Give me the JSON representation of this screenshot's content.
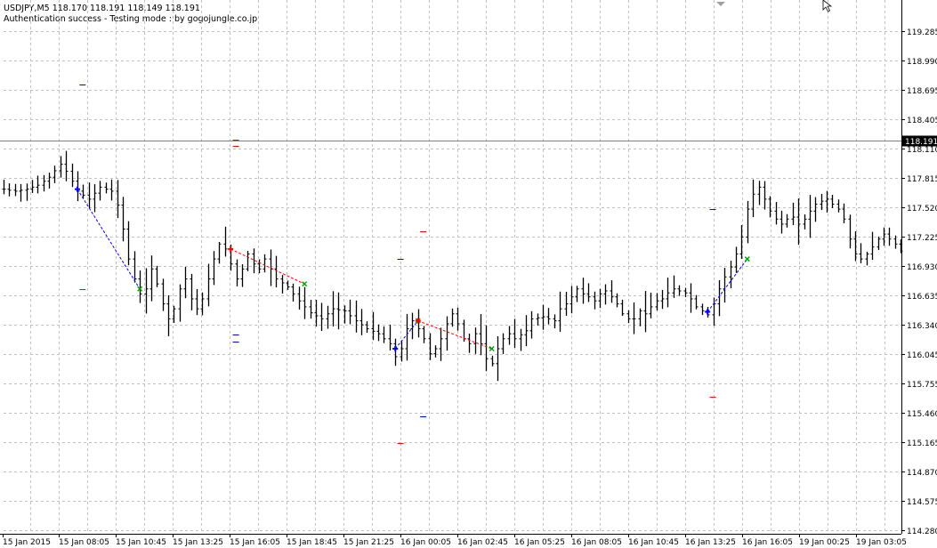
{
  "header": {
    "symbol_line": "USDJPY,M5  118.170 118.191 118.149 118.191",
    "status_line": "Authentication success - Testing mode : by gogojungle.co.jp"
  },
  "colors": {
    "background": "#ffffff",
    "grid": "#c0c0c0",
    "bars": "#000000",
    "buy_marker": "#0000ff",
    "sell_marker": "#ff0000",
    "buy_link": "#0000ff",
    "sell_link": "#ff0000",
    "close_marker": "#00a000",
    "price_label_bg": "#000000",
    "price_label_fg": "#ffffff"
  },
  "icons": {
    "cursor": "mouse-pointer-icon",
    "shift": "chart-shift-triangle-icon"
  },
  "chart_data": {
    "type": "bar",
    "symbol": "USDJPY",
    "timeframe": "M5",
    "ylim": [
      114.28,
      119.38
    ],
    "grid": true,
    "y_ticks": [
      "119.285",
      "118.990",
      "118.695",
      "118.405",
      "118.110",
      "117.815",
      "117.520",
      "117.225",
      "116.930",
      "116.635",
      "116.340",
      "116.045",
      "115.755",
      "115.460",
      "115.165",
      "114.870",
      "114.575",
      "114.280"
    ],
    "x_ticks": [
      "15 Jan 2015",
      "15 Jan 08:05",
      "15 Jan 10:45",
      "15 Jan 13:25",
      "15 Jan 16:05",
      "15 Jan 18:45",
      "15 Jan 21:25",
      "16 Jan 00:05",
      "16 Jan 02:45",
      "16 Jan 05:25",
      "16 Jan 08:05",
      "16 Jan 10:45",
      "16 Jan 13:25",
      "16 Jan 16:05",
      "19 Jan 00:25",
      "19 Jan 03:05"
    ],
    "current_price": "118.191",
    "path_points": [
      [
        0,
        117.7
      ],
      [
        2,
        117.68
      ],
      [
        4,
        117.7
      ],
      [
        6,
        117.74
      ],
      [
        8,
        117.82
      ],
      [
        10,
        117.95
      ],
      [
        11,
        117.88
      ],
      [
        13,
        117.68
      ],
      [
        15,
        117.6
      ],
      [
        17,
        117.72
      ],
      [
        19,
        117.68
      ],
      [
        20,
        117.54
      ],
      [
        21,
        117.3
      ],
      [
        22,
        117.0
      ],
      [
        23,
        116.8
      ],
      [
        24,
        116.65
      ],
      [
        25,
        116.7
      ],
      [
        26,
        116.9
      ],
      [
        27,
        116.75
      ],
      [
        28,
        116.55
      ],
      [
        29,
        116.4
      ],
      [
        30,
        116.5
      ],
      [
        31,
        116.7
      ],
      [
        32,
        116.8
      ],
      [
        33,
        116.6
      ],
      [
        34,
        116.5
      ],
      [
        35,
        116.6
      ],
      [
        36,
        116.8
      ],
      [
        37,
        117.0
      ],
      [
        38,
        117.15
      ],
      [
        39,
        117.1
      ],
      [
        40,
        116.95
      ],
      [
        41,
        116.8
      ],
      [
        42,
        116.9
      ],
      [
        43,
        117.05
      ],
      [
        44,
        116.95
      ],
      [
        45,
        116.9
      ],
      [
        46,
        117.0
      ],
      [
        47,
        116.9
      ],
      [
        48,
        116.8
      ],
      [
        50,
        116.72
      ],
      [
        52,
        116.58
      ],
      [
        54,
        116.46
      ],
      [
        56,
        116.4
      ],
      [
        58,
        116.5
      ],
      [
        60,
        116.48
      ],
      [
        62,
        116.38
      ],
      [
        64,
        116.3
      ],
      [
        66,
        116.25
      ],
      [
        68,
        116.15
      ],
      [
        69,
        116.02
      ],
      [
        70,
        116.1
      ],
      [
        71,
        116.3
      ],
      [
        72,
        116.38
      ],
      [
        73,
        116.3
      ],
      [
        74,
        116.2
      ],
      [
        75,
        116.05
      ],
      [
        76,
        116.1
      ],
      [
        77,
        116.2
      ],
      [
        78,
        116.35
      ],
      [
        79,
        116.45
      ],
      [
        80,
        116.35
      ],
      [
        81,
        116.2
      ],
      [
        82,
        116.15
      ],
      [
        83,
        116.25
      ],
      [
        84,
        116.15
      ],
      [
        85,
        116.0
      ],
      [
        86,
        115.95
      ],
      [
        87,
        116.1
      ],
      [
        88,
        116.2
      ],
      [
        89,
        116.25
      ],
      [
        90,
        116.2
      ],
      [
        92,
        116.28
      ],
      [
        93,
        116.4
      ],
      [
        95,
        116.42
      ],
      [
        97,
        116.38
      ],
      [
        98,
        116.5
      ],
      [
        99,
        116.55
      ],
      [
        100,
        116.62
      ],
      [
        101,
        116.7
      ],
      [
        102,
        116.65
      ],
      [
        103,
        116.62
      ],
      [
        104,
        116.58
      ],
      [
        105,
        116.65
      ],
      [
        106,
        116.68
      ],
      [
        107,
        116.62
      ],
      [
        108,
        116.55
      ],
      [
        109,
        116.45
      ],
      [
        110,
        116.4
      ],
      [
        111,
        116.4
      ],
      [
        112,
        116.48
      ],
      [
        113,
        116.45
      ],
      [
        114,
        116.52
      ],
      [
        115,
        116.58
      ],
      [
        116,
        116.6
      ],
      [
        117,
        116.66
      ],
      [
        118,
        116.7
      ],
      [
        119,
        116.68
      ],
      [
        120,
        116.66
      ],
      [
        121,
        116.6
      ],
      [
        122,
        116.52
      ],
      [
        123,
        116.48
      ],
      [
        124,
        116.44
      ],
      [
        125,
        116.55
      ],
      [
        126,
        116.7
      ],
      [
        127,
        116.82
      ],
      [
        128,
        116.92
      ],
      [
        129,
        117.05
      ],
      [
        130,
        117.22
      ],
      [
        131,
        117.5
      ],
      [
        132,
        117.65
      ],
      [
        133,
        117.72
      ],
      [
        134,
        117.6
      ],
      [
        135,
        117.48
      ],
      [
        136,
        117.4
      ],
      [
        137,
        117.35
      ],
      [
        138,
        117.4
      ],
      [
        139,
        117.42
      ],
      [
        140,
        117.35
      ],
      [
        141,
        117.4
      ],
      [
        142,
        117.48
      ],
      [
        143,
        117.55
      ],
      [
        144,
        117.58
      ],
      [
        145,
        117.6
      ],
      [
        146,
        117.55
      ],
      [
        147,
        117.5
      ],
      [
        148,
        117.4
      ],
      [
        149,
        117.2
      ],
      [
        150,
        117.05
      ],
      [
        151,
        117.0
      ],
      [
        152,
        117.05
      ],
      [
        153,
        117.12
      ],
      [
        154,
        117.2
      ],
      [
        155,
        117.25
      ],
      [
        156,
        117.2
      ],
      [
        157,
        117.15
      ],
      [
        158,
        117.08
      ]
    ],
    "trades": [
      {
        "type": "buy",
        "open_bar": 13,
        "open_price": 117.7,
        "close_bar": 24,
        "close_price": 116.7
      },
      {
        "type": "sell",
        "open_bar": 40,
        "open_price": 117.1,
        "close_bar": 53,
        "close_price": 116.75
      },
      {
        "type": "buy",
        "open_bar": 69,
        "open_price": 116.1,
        "close_bar": 73,
        "close_price": 116.38
      },
      {
        "type": "sell",
        "open_bar": 73,
        "open_price": 116.38,
        "close_bar": 86,
        "close_price": 116.1
      },
      {
        "type": "buy",
        "open_bar": 124,
        "open_price": 116.47,
        "close_bar": 131,
        "close_price": 117.0
      }
    ],
    "levels": [
      {
        "type": "buy",
        "bar": 14,
        "price": 118.75
      },
      {
        "type": "sell",
        "bar": 14,
        "price": 116.7
      },
      {
        "type": "sell",
        "bar": 41,
        "price": 118.2
      },
      {
        "type": "sell",
        "bar": 41,
        "price": 118.13
      },
      {
        "type": "buy",
        "bar": 41,
        "price": 116.24
      },
      {
        "type": "buy",
        "bar": 41,
        "price": 116.17
      },
      {
        "type": "buy",
        "bar": 70,
        "price": 117.0
      },
      {
        "type": "sell",
        "bar": 70,
        "price": 115.15
      },
      {
        "type": "sell",
        "bar": 74,
        "price": 117.28
      },
      {
        "type": "buy",
        "bar": 74,
        "price": 115.42
      },
      {
        "type": "buy",
        "bar": 125,
        "price": 117.5
      },
      {
        "type": "sell",
        "bar": 125,
        "price": 115.62
      }
    ]
  }
}
